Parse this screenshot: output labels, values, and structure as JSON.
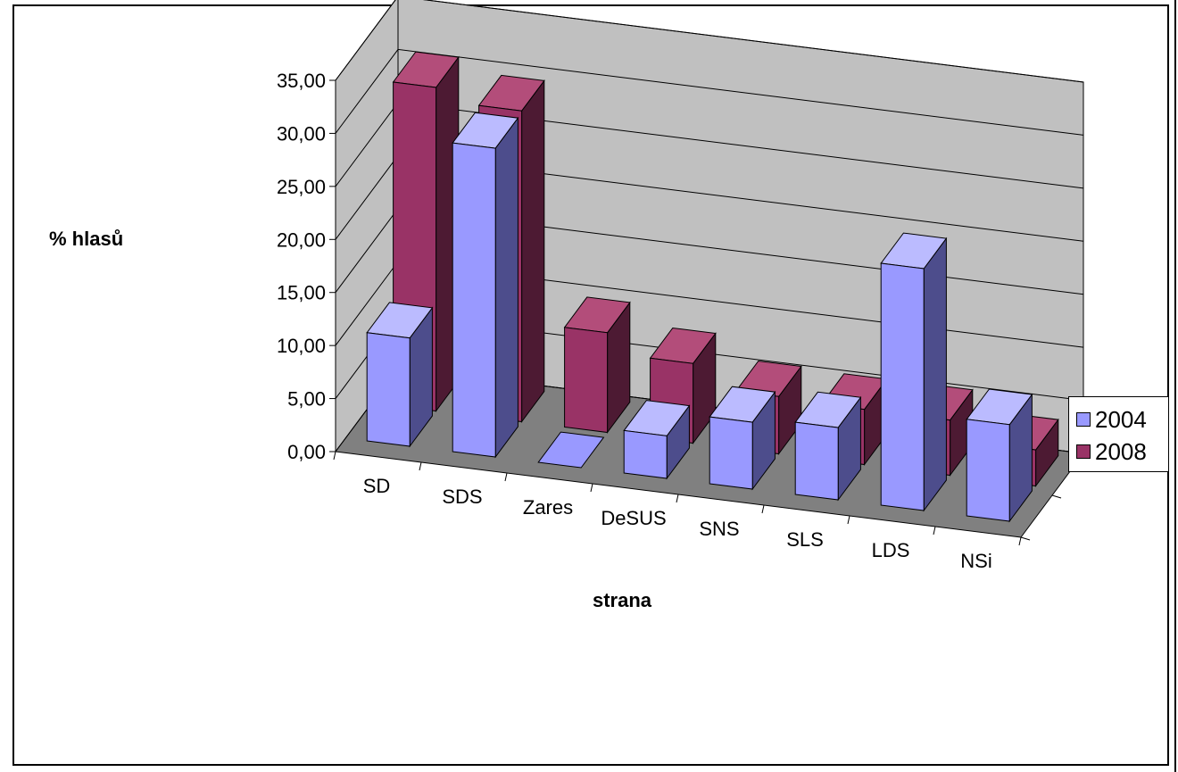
{
  "chart_data": {
    "type": "bar",
    "variant": "3d-clustered",
    "categories": [
      "SD",
      "SDS",
      "Zares",
      "DeSUS",
      "SNS",
      "SLS",
      "LDS",
      "NSi"
    ],
    "series": [
      {
        "name": "2004",
        "values": [
          10.2,
          29.1,
          0.0,
          4.0,
          6.3,
          6.8,
          22.8,
          9.1
        ],
        "color": "#9999ff",
        "side_color": "#4d4d8c",
        "top_color": "#bbbbff"
      },
      {
        "name": "2008",
        "values": [
          30.5,
          29.3,
          9.4,
          7.5,
          5.4,
          5.2,
          5.2,
          3.4
        ],
        "color": "#993366",
        "side_color": "#4d1a33",
        "top_color": "#b34d7a"
      }
    ],
    "title": "",
    "xlabel": "strana",
    "ylabel": "% hlasů",
    "ylim": [
      0,
      35
    ],
    "ytick_labels": [
      "0,00",
      "5,00",
      "10,00",
      "15,00",
      "20,00",
      "25,00",
      "30,00",
      "35,00"
    ],
    "grid": true,
    "legend_position": "right",
    "wall_color": "#c0c0c0",
    "floor_color": "#808080"
  }
}
